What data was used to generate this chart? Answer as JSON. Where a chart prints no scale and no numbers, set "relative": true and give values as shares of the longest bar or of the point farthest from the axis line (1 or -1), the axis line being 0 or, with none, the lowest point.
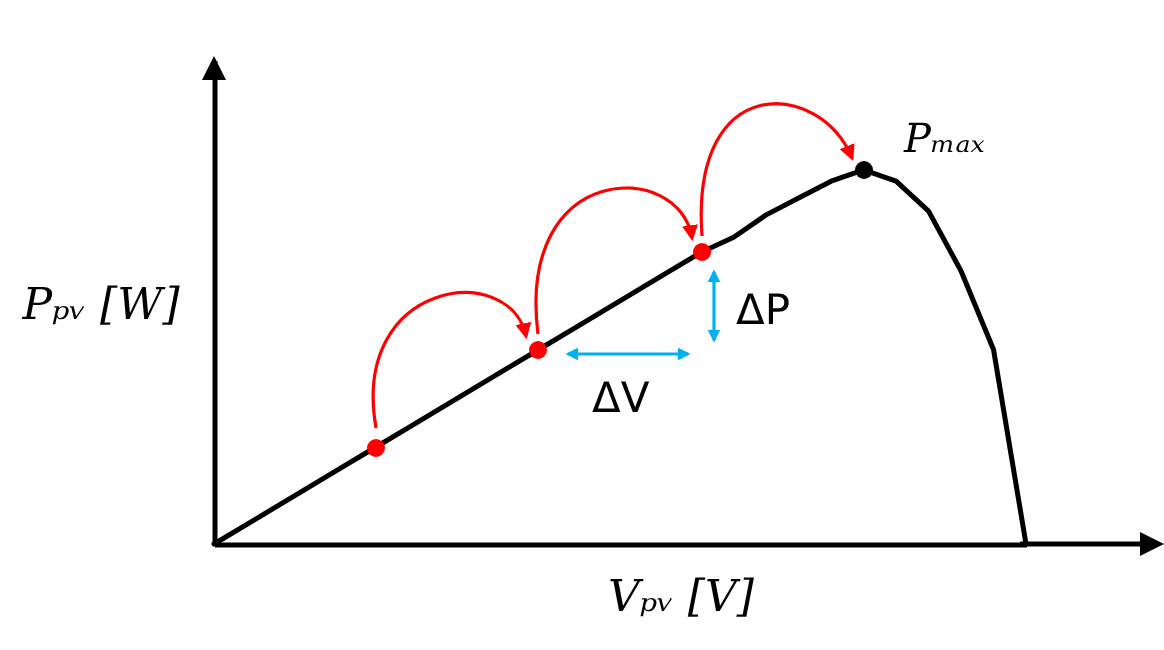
{
  "chart_data": {
    "type": "line",
    "relative": true,
    "xlabel": "Vₚᵥ [V]",
    "ylabel": "Pₚᵥ [W]",
    "tick_labels": false,
    "categories": [
      null,
      null,
      null,
      null,
      null,
      null,
      null,
      null,
      null,
      null,
      null,
      null,
      null,
      null,
      null,
      null,
      null,
      null,
      null,
      null,
      null,
      null,
      null,
      null,
      null,
      null
    ],
    "series": [
      {
        "color": "#000000",
        "values": [
          0,
          0.052,
          0.104,
          0.156,
          0.208,
          0.26,
          0.312,
          0.364,
          0.416,
          0.468,
          0.52,
          0.572,
          0.624,
          0.676,
          0.728,
          0.78,
          0.82,
          0.88,
          0.925,
          0.97,
          1.0,
          0.97,
          0.89,
          0.73,
          0.52,
          0
        ]
      }
    ],
    "annotations": [
      "Pₘₐₓ",
      "ΔP",
      "ΔV"
    ]
  }
}
